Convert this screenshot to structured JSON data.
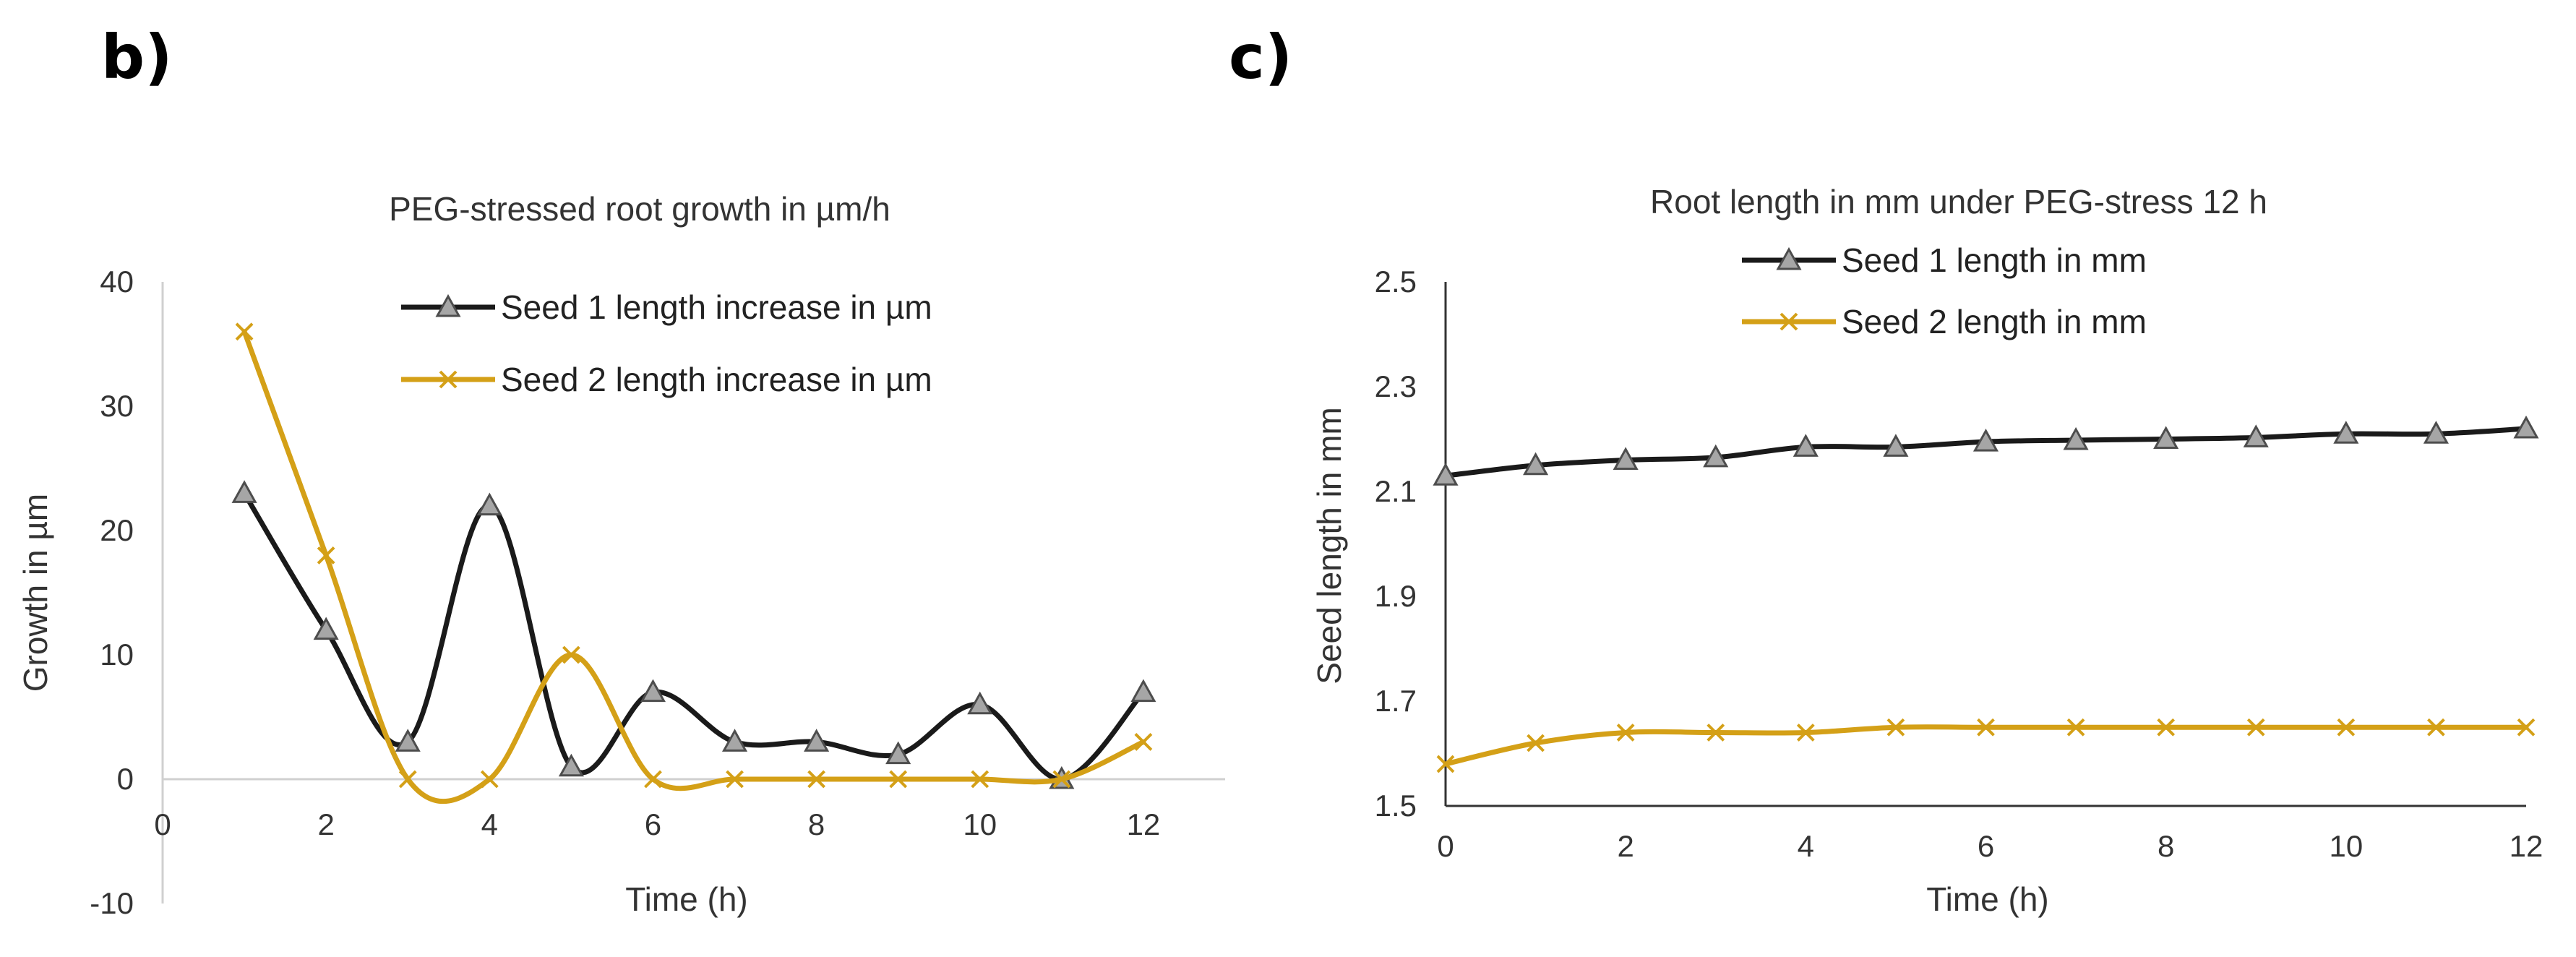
{
  "panels": {
    "b": "b)",
    "c": "c)"
  },
  "chart_data": [
    {
      "type": "line",
      "title": "PEG-stressed root growth in µm/h",
      "xlabel": "Time (h)",
      "ylabel": "Growth in µm",
      "xlim": [
        0,
        13
      ],
      "ylim": [
        -10,
        40
      ],
      "xticks": [
        "0",
        "2",
        "4",
        "6",
        "8",
        "10",
        "12"
      ],
      "yticks": [
        "-10",
        "0",
        "10",
        "20",
        "30",
        "40"
      ],
      "smooth": true,
      "legend_position": "top",
      "series": [
        {
          "name": "Seed 1 length increase in µm",
          "color": "#1a1a1a",
          "marker": "triangle",
          "x": [
            1,
            2,
            3,
            4,
            5,
            6,
            7,
            8,
            9,
            10,
            11,
            12
          ],
          "y": [
            23,
            12,
            3,
            22,
            1,
            7,
            3,
            3,
            2,
            6,
            0,
            7
          ]
        },
        {
          "name": "Seed 2 length increase in µm",
          "color": "#d4a017",
          "marker": "cross",
          "x": [
            1,
            2,
            3,
            4,
            5,
            6,
            7,
            8,
            9,
            10,
            11,
            12
          ],
          "y": [
            36,
            18,
            0,
            0,
            10,
            0,
            0,
            0,
            0,
            0,
            0,
            3
          ]
        }
      ]
    },
    {
      "type": "line",
      "title": "Root length in mm under PEG-stress 12 h",
      "xlabel": "Time (h)",
      "ylabel": "Seed length in mm",
      "xlim": [
        0,
        12
      ],
      "ylim": [
        1.5,
        2.5
      ],
      "xticks": [
        "0",
        "2",
        "4",
        "6",
        "8",
        "10",
        "12"
      ],
      "yticks": [
        "1.5",
        "1.7",
        "1.9",
        "2.1",
        "2.3",
        "2.5"
      ],
      "smooth": true,
      "legend_position": "top",
      "series": [
        {
          "name": "Seed 1 length in mm",
          "color": "#1a1a1a",
          "marker": "triangle",
          "x": [
            0,
            1,
            2,
            3,
            4,
            5,
            6,
            7,
            8,
            9,
            10,
            11,
            12
          ],
          "y": [
            2.13,
            2.15,
            2.16,
            2.165,
            2.185,
            2.185,
            2.195,
            2.198,
            2.2,
            2.203,
            2.21,
            2.21,
            2.22
          ]
        },
        {
          "name": "Seed 2 length in mm",
          "color": "#d4a017",
          "marker": "cross",
          "x": [
            0,
            1,
            2,
            3,
            4,
            5,
            6,
            7,
            8,
            9,
            10,
            11,
            12
          ],
          "y": [
            1.58,
            1.62,
            1.64,
            1.64,
            1.64,
            1.65,
            1.65,
            1.65,
            1.65,
            1.65,
            1.65,
            1.65,
            1.65
          ]
        }
      ]
    }
  ]
}
